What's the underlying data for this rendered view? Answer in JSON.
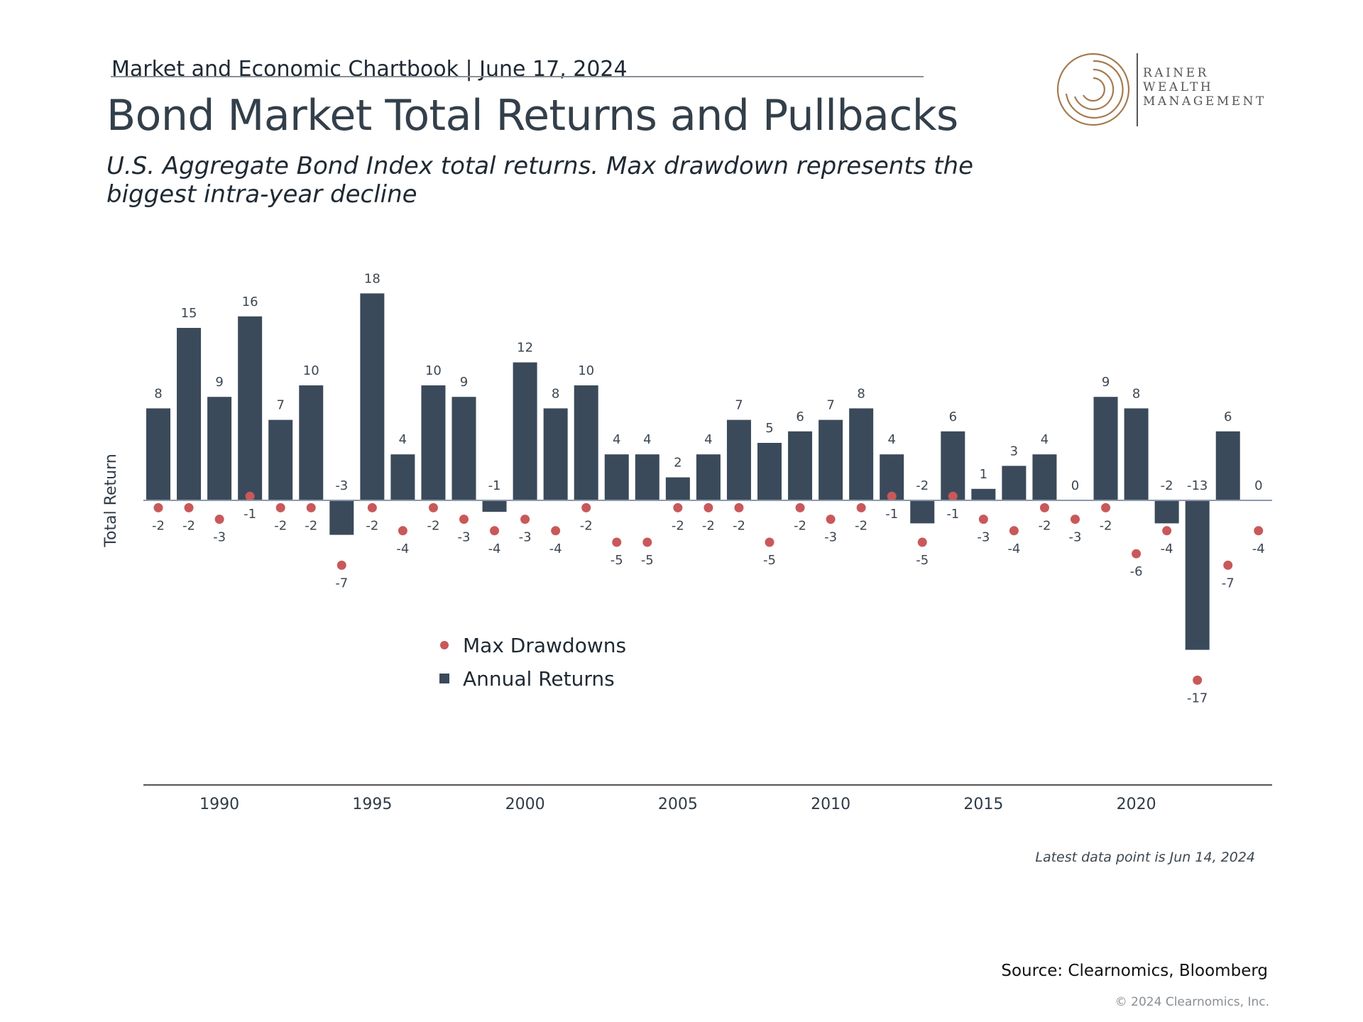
{
  "header": {
    "line": "Market and Economic Chartbook | June 17, 2024",
    "title": "Bond Market Total Returns and Pullbacks",
    "subtitle": "U.S. Aggregate Bond Index total returns. Max drawdown represents the biggest intra-year decline"
  },
  "logo": {
    "lines": [
      "RAINER",
      "WEALTH",
      "MANAGEMENT"
    ],
    "color": "#a47b4f"
  },
  "chart_data": {
    "type": "bar",
    "title": "",
    "xlabel": "",
    "ylabel": "Total Return",
    "ylim": [
      -20,
      20
    ],
    "grid": false,
    "legend_position": "center-left",
    "categories": [
      1988,
      1989,
      1990,
      1991,
      1992,
      1993,
      1994,
      1995,
      1996,
      1997,
      1998,
      1999,
      2000,
      2001,
      2002,
      2003,
      2004,
      2005,
      2006,
      2007,
      2008,
      2009,
      2010,
      2011,
      2012,
      2013,
      2014,
      2015,
      2016,
      2017,
      2018,
      2019,
      2020,
      2021,
      2022,
      2023,
      2024
    ],
    "x_ticks": [
      "1990",
      "1995",
      "2000",
      "2005",
      "2010",
      "2015",
      "2020"
    ],
    "series": [
      {
        "name": "Annual Returns",
        "type": "bar",
        "color": "#3b4a5a",
        "values": [
          8,
          15,
          9,
          16,
          7,
          10,
          -3,
          18,
          4,
          10,
          9,
          -1,
          12,
          8,
          10,
          4,
          4,
          2,
          4,
          7,
          5,
          6,
          7,
          8,
          4,
          -2,
          6,
          1,
          3,
          4,
          0,
          9,
          8,
          -2,
          -13,
          6,
          0
        ]
      },
      {
        "name": "Max Drawdowns",
        "type": "scatter",
        "color": "#c9585a",
        "values": [
          -2,
          -2,
          -3,
          -1,
          -2,
          -2,
          -7,
          -2,
          -4,
          -2,
          -3,
          -4,
          -3,
          -4,
          -2,
          -5,
          -5,
          -2,
          -2,
          -2,
          -5,
          -2,
          -3,
          -2,
          -1,
          -5,
          -1,
          -3,
          -4,
          -2,
          -3,
          -2,
          -6,
          -4,
          -17,
          -7,
          -4
        ]
      }
    ]
  },
  "footer": {
    "note": "Latest data point is Jun 14, 2024",
    "source": "Source: Clearnomics, Bloomberg",
    "copyright": "© 2024 Clearnomics, Inc."
  }
}
